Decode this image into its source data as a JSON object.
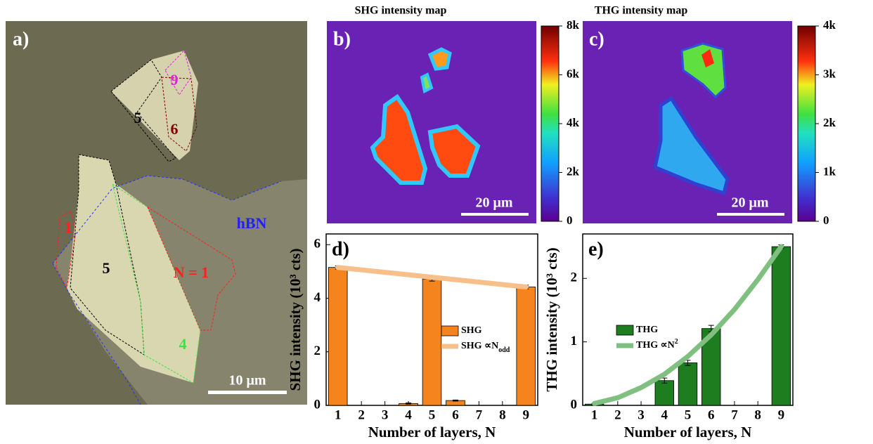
{
  "panel_a": {
    "label": "a)",
    "annotations": [
      "9",
      "5",
      "6",
      "1",
      "5",
      "N = 1",
      "hBN",
      "4"
    ],
    "scale_bar": "10 μm"
  },
  "panel_b": {
    "title": "SHG intensity map",
    "label": "b)",
    "scale_bar": "20 μm",
    "colorbar": {
      "lim": [
        0,
        8000
      ],
      "ticks": [
        {
          "value": 0,
          "label": "0"
        },
        {
          "value": 2000,
          "label": "2k"
        },
        {
          "value": 4000,
          "label": "4k"
        },
        {
          "value": 6000,
          "label": "6k"
        },
        {
          "value": 8000,
          "label": "8k"
        }
      ]
    }
  },
  "panel_c": {
    "title": "THG intensity map",
    "label": "c)",
    "scale_bar": "20 μm",
    "colorbar": {
      "lim": [
        0,
        4000
      ],
      "ticks": [
        {
          "value": 0,
          "label": "0"
        },
        {
          "value": 1000,
          "label": "1k"
        },
        {
          "value": 2000,
          "label": "2k"
        },
        {
          "value": 3000,
          "label": "3k"
        },
        {
          "value": 4000,
          "label": "4k"
        }
      ]
    }
  },
  "chart_data": [
    {
      "type": "bar",
      "label": "d)",
      "xlabel": "Number of layers, N",
      "ylabel": "SHG intensity (10³ cts)",
      "xlim": [
        0.5,
        9.5
      ],
      "xticks": [
        1,
        2,
        3,
        4,
        5,
        6,
        7,
        8,
        9
      ],
      "ylim": [
        0,
        6.4
      ],
      "yticks": [
        0,
        2,
        4,
        6
      ],
      "series": [
        {
          "name": "SHG",
          "color": "#f5841f",
          "x": [
            1,
            4,
            5,
            6,
            9
          ],
          "values": [
            5.15,
            0.07,
            4.72,
            0.18,
            4.42
          ],
          "errors": [
            0.06,
            0.02,
            0.08,
            0.02,
            0.07
          ]
        }
      ],
      "fit": {
        "name": "SHG ∝N",
        "name_sub": "odd",
        "color": "#f7c08a",
        "x": [
          1,
          9
        ],
        "values": [
          5.15,
          4.42
        ]
      }
    },
    {
      "type": "bar",
      "label": "e)",
      "xlabel": "Number of layers, N",
      "ylabel": "THG intensity (10³ cts)",
      "xlim": [
        0.5,
        9.5
      ],
      "xticks": [
        1,
        2,
        3,
        4,
        5,
        6,
        7,
        8,
        9
      ],
      "ylim": [
        0,
        2.7
      ],
      "yticks": [
        0,
        1,
        2
      ],
      "series": [
        {
          "name": "THG",
          "color": "#1e7d1e",
          "x": [
            1,
            4,
            5,
            6,
            9
          ],
          "values": [
            0.02,
            0.39,
            0.67,
            1.21,
            2.5
          ],
          "errors": [
            0.01,
            0.04,
            0.04,
            0.05,
            0.03
          ]
        }
      ],
      "fit": {
        "name": "THG ∝N",
        "name_sup": "2",
        "color": "#7fbf7f",
        "x": [
          1,
          2,
          3,
          4,
          5,
          6,
          7,
          8,
          9
        ],
        "values": [
          0.03,
          0.12,
          0.28,
          0.49,
          0.77,
          1.11,
          1.51,
          1.98,
          2.5
        ]
      }
    }
  ]
}
